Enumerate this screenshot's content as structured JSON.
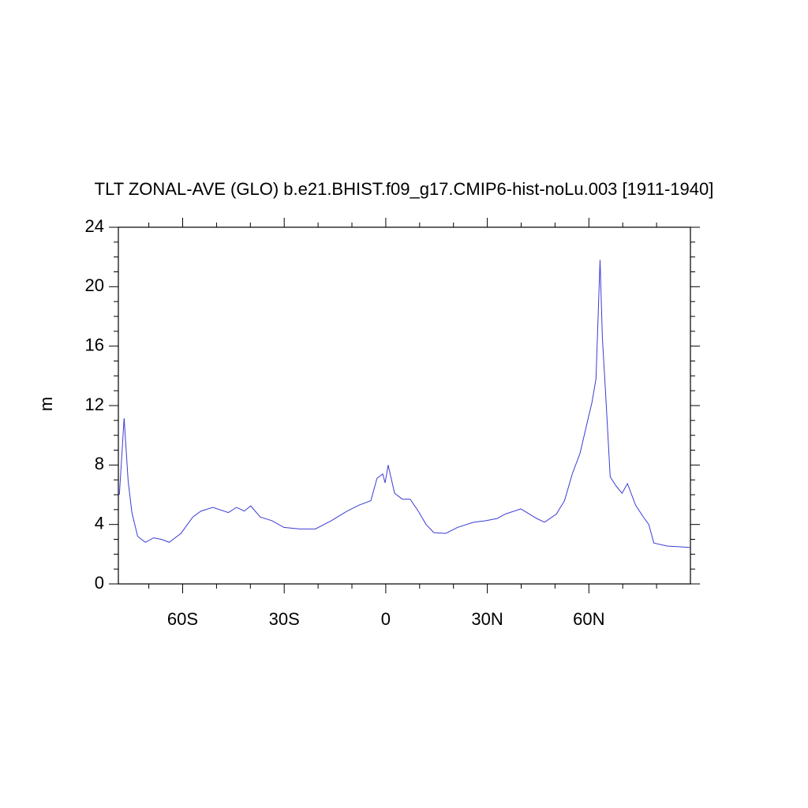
{
  "chart_data": {
    "type": "line",
    "title": "TLT ZONAL-AVE (GLO) b.e21.BHIST.f09_g17.CMIP6-hist-noLu.003 [1911-1940]",
    "ylabel": "m",
    "xlim": [
      -79,
      90
    ],
    "ylim": [
      0,
      24
    ],
    "xticks": [
      {
        "value": -60,
        "label": "60S"
      },
      {
        "value": -30,
        "label": "30S"
      },
      0,
      {
        "value": 30,
        "label": "30N"
      },
      {
        "value": 60,
        "label": "60N"
      }
    ],
    "xminorticks": [
      -70,
      -50,
      -40,
      -20,
      -10,
      10,
      20,
      40,
      50,
      70,
      80
    ],
    "yticks": [
      0,
      4,
      8,
      12,
      16,
      20,
      24
    ],
    "yminorticks": [
      1,
      2,
      3,
      5,
      6,
      7,
      9,
      10,
      11,
      13,
      14,
      15,
      17,
      18,
      19,
      21,
      22,
      23
    ],
    "series": [
      {
        "color": "#3b3bd6",
        "x": [
          -78.7,
          -77.3,
          -76.1,
          -75,
          -73.3,
          -71,
          -68.6,
          -66.3,
          -64,
          -60.5,
          -57,
          -54.6,
          -51.1,
          -46.5,
          -44.1,
          -41.8,
          -39.9,
          -37.1,
          -33.6,
          -30.1,
          -25.4,
          -20.8,
          -16.1,
          -11.4,
          -7.9,
          -4.4,
          -2.6,
          -0.9,
          -0.2,
          0.7,
          2.6,
          4.9,
          7.2,
          9.6,
          11.9,
          14.2,
          17.7,
          21.2,
          25.9,
          29.4,
          32.9,
          35.3,
          39.9,
          44.6,
          46.9,
          50.4,
          52.8,
          55.1,
          57.4,
          59.8,
          60.9,
          62.1,
          63.3,
          64,
          64.9,
          66.3,
          68,
          69.8,
          71.4,
          73.8,
          76.1,
          77.7,
          79.2,
          83.1,
          86.6,
          90
        ],
        "values": [
          6.0,
          11.15,
          6.9,
          4.8,
          3.2,
          2.8,
          3.1,
          3.0,
          2.8,
          3.4,
          4.5,
          4.9,
          5.15,
          4.8,
          5.15,
          4.9,
          5.25,
          4.5,
          4.25,
          3.8,
          3.7,
          3.7,
          4.25,
          4.9,
          5.3,
          5.6,
          7.1,
          7.4,
          6.8,
          8.0,
          6.1,
          5.7,
          5.7,
          4.9,
          4.0,
          3.45,
          3.4,
          3.8,
          4.15,
          4.25,
          4.4,
          4.7,
          5.05,
          4.4,
          4.15,
          4.7,
          5.6,
          7.4,
          8.8,
          11.15,
          12.2,
          13.8,
          21.8,
          16.5,
          13.0,
          7.2,
          6.6,
          6.1,
          6.75,
          5.3,
          4.5,
          4.0,
          2.75,
          2.55,
          2.5,
          2.45
        ]
      }
    ]
  }
}
